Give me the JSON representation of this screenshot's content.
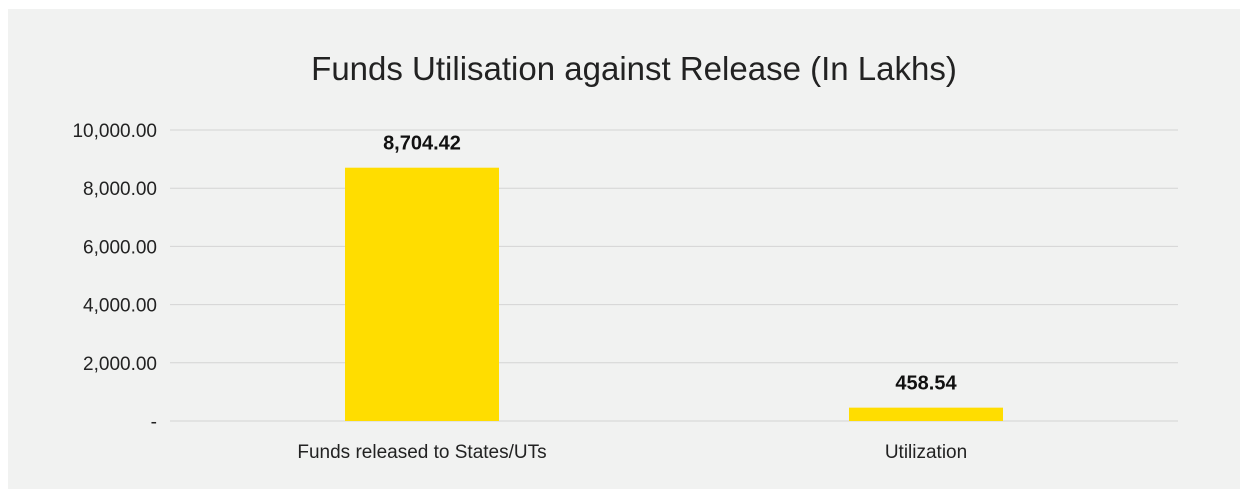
{
  "chart_data": {
    "type": "bar",
    "title": "Funds Utilisation against Release (In Lakhs)",
    "categories": [
      "Funds released to States/UTs",
      "Utilization"
    ],
    "values": [
      8704.42,
      458.54
    ],
    "value_labels": [
      "8,704.42",
      "458.54"
    ],
    "yticks": [
      0,
      2000,
      4000,
      6000,
      8000,
      10000
    ],
    "ytick_labels": [
      "-",
      "2,000.00",
      "4,000.00",
      "6,000.00",
      "8,000.00",
      "10,000.00"
    ],
    "ylim": [
      0,
      10000
    ],
    "grid": true,
    "legend": "none",
    "bar_color": "#ffdd00",
    "background_color": "#f1f2f1"
  }
}
